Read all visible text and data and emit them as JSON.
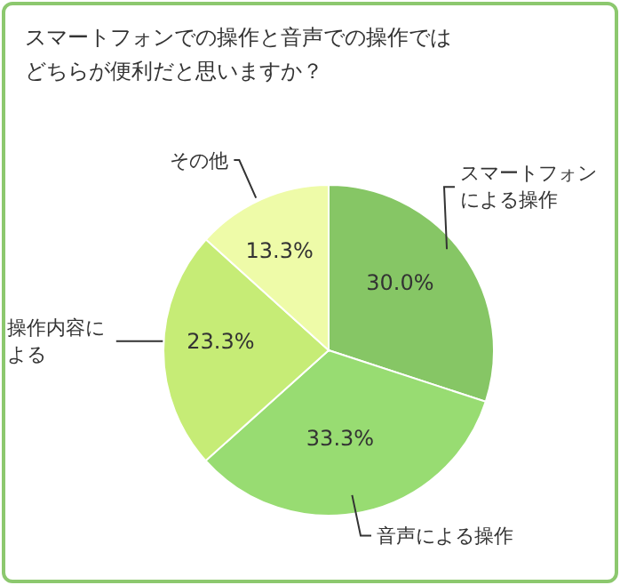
{
  "chart_data": {
    "type": "pie",
    "title": "スマートフォンでの操作と音声での操作ではどちらが便利だと思いますか？",
    "categories": [
      "スマートフォンによる操作",
      "音声による操作",
      "操作内容による",
      "その他"
    ],
    "values": [
      30.0,
      33.3,
      23.3,
      13.3
    ],
    "colors": [
      "#86c665",
      "#98dc72",
      "#c6ec76",
      "#eefba8"
    ],
    "value_labels": [
      "30.0%",
      "33.3%",
      "23.3%",
      "13.3%"
    ],
    "legend": false
  }
}
